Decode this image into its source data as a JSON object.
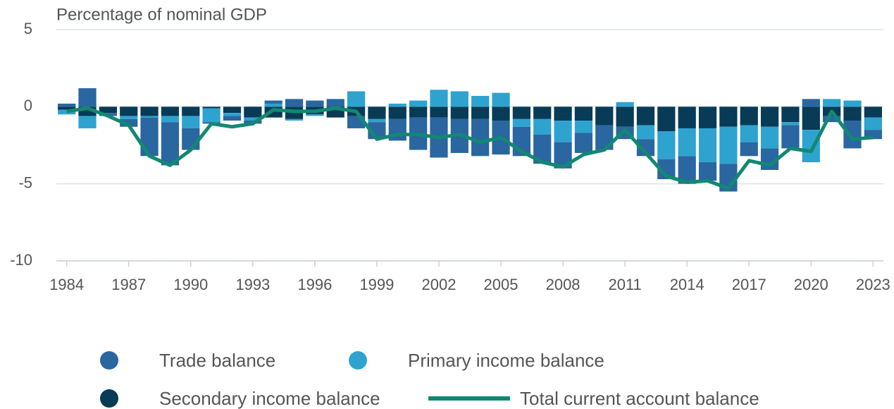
{
  "chart_data": {
    "type": "bar",
    "y_axis_label": "Percentage of nominal GDP",
    "x": [
      1984,
      1985,
      1986,
      1987,
      1988,
      1989,
      1990,
      1991,
      1992,
      1993,
      1994,
      1995,
      1996,
      1997,
      1998,
      1999,
      2000,
      2001,
      2002,
      2003,
      2004,
      2005,
      2006,
      2007,
      2008,
      2009,
      2010,
      2011,
      2012,
      2013,
      2014,
      2015,
      2016,
      2017,
      2018,
      2019,
      2020,
      2021,
      2022,
      2023
    ],
    "series": [
      {
        "name": "Trade balance",
        "color": "#2a66a0",
        "values": [
          0.2,
          1.2,
          -0.2,
          -0.5,
          -2.5,
          -2.8,
          -1.4,
          -0.1,
          -0.3,
          -0.2,
          0.2,
          0.5,
          0.4,
          0.5,
          -0.8,
          -1.1,
          -1.4,
          -2.1,
          -2.6,
          -2.2,
          -2.4,
          -2.2,
          -1.9,
          -1.9,
          -1.7,
          -1.3,
          -1.6,
          -0.8,
          -1.1,
          -1.3,
          -1.8,
          -1.2,
          -1.8,
          -0.9,
          -1.4,
          -1.5,
          0.5,
          -0.4,
          -1.8,
          -0.6
        ]
      },
      {
        "name": "Primary income balance",
        "color": "#2ea3cf",
        "values": [
          -0.3,
          -0.8,
          0,
          -0.2,
          -0.1,
          -0.4,
          -0.8,
          -0.9,
          -0.2,
          -0.2,
          0.2,
          -0.1,
          -0.1,
          0,
          1.0,
          -0.2,
          0.2,
          0.4,
          1.1,
          1.0,
          0.7,
          0.9,
          -0.5,
          -1.0,
          -1.4,
          -0.8,
          0,
          0.3,
          -0.9,
          -1.8,
          -1.8,
          -2.2,
          -2.4,
          -1.1,
          -1.4,
          -0.2,
          -2.1,
          0.5,
          0.4,
          -0.8
        ]
      },
      {
        "name": "Secondary income balance",
        "color": "#083b56",
        "values": [
          -0.2,
          -0.6,
          -0.4,
          -0.6,
          -0.6,
          -0.6,
          -0.6,
          -0.1,
          -0.4,
          -0.7,
          -0.7,
          -0.8,
          -0.5,
          -0.7,
          -0.6,
          -0.8,
          -0.8,
          -0.7,
          -0.7,
          -0.8,
          -0.8,
          -0.9,
          -0.8,
          -0.8,
          -0.9,
          -0.9,
          -1.2,
          -1.3,
          -1.2,
          -1.6,
          -1.4,
          -1.4,
          -1.3,
          -1.2,
          -1.3,
          -1.0,
          -1.5,
          -0.6,
          -0.9,
          -0.7
        ]
      },
      {
        "name": "Total current account balance",
        "color": "#128872",
        "type": "line",
        "values": [
          -0.3,
          -0.1,
          -0.6,
          -1.2,
          -3.2,
          -3.8,
          -2.8,
          -1.1,
          -1.3,
          -1.1,
          -0.2,
          -0.3,
          -0.3,
          -0.1,
          -0.3,
          -2.1,
          -1.8,
          -1.8,
          -2.0,
          -1.8,
          -2.3,
          -2.0,
          -2.9,
          -3.6,
          -3.9,
          -3.1,
          -2.8,
          -1.5,
          -3.0,
          -4.5,
          -4.9,
          -4.8,
          -5.3,
          -3.5,
          -3.8,
          -2.7,
          -2.9,
          -0.3,
          -2.1,
          -2.0
        ]
      }
    ],
    "xlim": [
      1983.5,
      2023.5
    ],
    "xticks": [
      1984,
      1987,
      1990,
      1993,
      1996,
      1999,
      2002,
      2005,
      2008,
      2011,
      2014,
      2017,
      2020,
      2023
    ],
    "ylim": [
      -10,
      5
    ],
    "yticks": [
      -10,
      -5,
      0,
      5
    ],
    "grid": true
  }
}
